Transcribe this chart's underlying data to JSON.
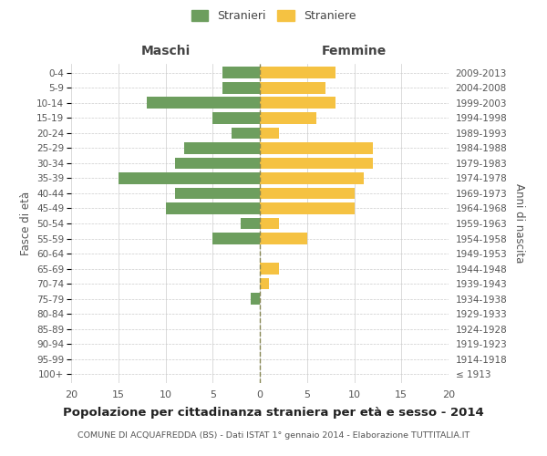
{
  "age_groups": [
    "100+",
    "95-99",
    "90-94",
    "85-89",
    "80-84",
    "75-79",
    "70-74",
    "65-69",
    "60-64",
    "55-59",
    "50-54",
    "45-49",
    "40-44",
    "35-39",
    "30-34",
    "25-29",
    "20-24",
    "15-19",
    "10-14",
    "5-9",
    "0-4"
  ],
  "birth_years": [
    "≤ 1913",
    "1914-1918",
    "1919-1923",
    "1924-1928",
    "1929-1933",
    "1934-1938",
    "1939-1943",
    "1944-1948",
    "1949-1953",
    "1954-1958",
    "1959-1963",
    "1964-1968",
    "1969-1973",
    "1974-1978",
    "1979-1983",
    "1984-1988",
    "1989-1993",
    "1994-1998",
    "1999-2003",
    "2004-2008",
    "2009-2013"
  ],
  "maschi": [
    0,
    0,
    0,
    0,
    0,
    1,
    0,
    0,
    0,
    5,
    2,
    10,
    9,
    15,
    9,
    8,
    3,
    5,
    12,
    4,
    4
  ],
  "femmine": [
    0,
    0,
    0,
    0,
    0,
    0,
    1,
    2,
    0,
    5,
    2,
    10,
    10,
    11,
    12,
    12,
    2,
    6,
    8,
    7,
    8
  ],
  "male_color": "#6d9e5e",
  "female_color": "#f5c242",
  "background_color": "#ffffff",
  "grid_color": "#cccccc",
  "center_line_color": "#888855",
  "title": "Popolazione per cittadinanza straniera per età e sesso - 2014",
  "subtitle": "COMUNE DI ACQUAFREDDA (BS) - Dati ISTAT 1° gennaio 2014 - Elaborazione TUTTITALIA.IT",
  "ylabel_left": "Fasce di età",
  "ylabel_right": "Anni di nascita",
  "xlabel_maschi": "Maschi",
  "xlabel_femmine": "Femmine",
  "legend_maschi": "Stranieri",
  "legend_femmine": "Straniere",
  "xlim": [
    -20,
    20
  ],
  "xticks": [
    -20,
    -15,
    -10,
    -5,
    0,
    5,
    10,
    15,
    20
  ],
  "xtick_labels": [
    "20",
    "15",
    "10",
    "5",
    "0",
    "5",
    "10",
    "15",
    "20"
  ]
}
